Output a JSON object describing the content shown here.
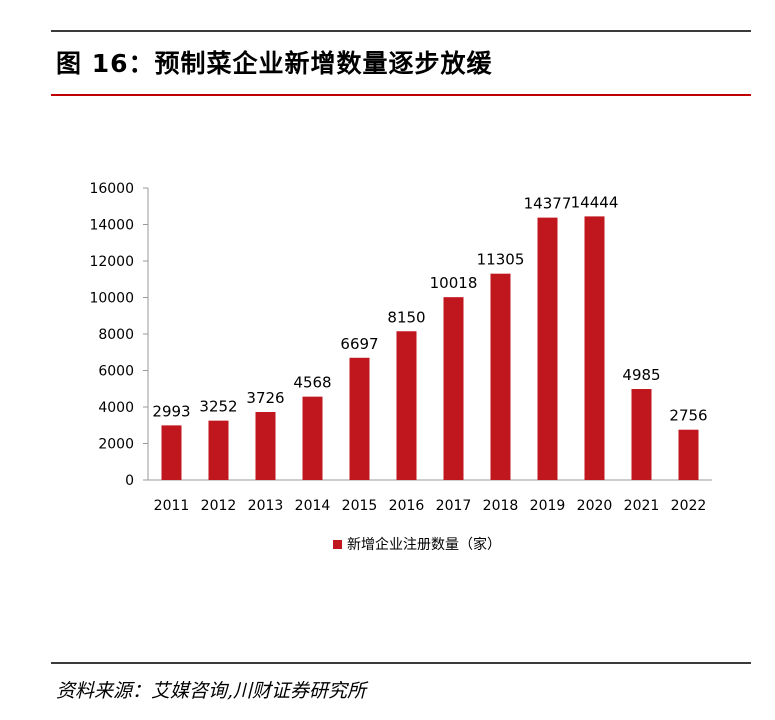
{
  "header": {
    "figure_title": "图 16：预制菜企业新增数量逐步放缓"
  },
  "footer": {
    "source": "资料来源：艾媒咨询,川财证券研究所"
  },
  "colors": {
    "bar": "#c0161e",
    "title_rule": "#c00000",
    "axis": "#999999"
  },
  "chart_data": {
    "type": "bar",
    "categories": [
      "2011",
      "2012",
      "2013",
      "2014",
      "2015",
      "2016",
      "2017",
      "2018",
      "2019",
      "2020",
      "2021",
      "2022"
    ],
    "series": [
      {
        "name": "新增企业注册数量（家）",
        "values": [
          2993,
          3252,
          3726,
          4568,
          6697,
          8150,
          10018,
          11305,
          14377,
          14444,
          4985,
          2756
        ]
      }
    ],
    "ylim": [
      0,
      16000
    ],
    "yticks": [
      "0",
      "2000",
      "4000",
      "6000",
      "8000",
      "10000",
      "12000",
      "14000",
      "16000"
    ],
    "grid": false,
    "data_labels": true,
    "legend_position": "bottom"
  }
}
